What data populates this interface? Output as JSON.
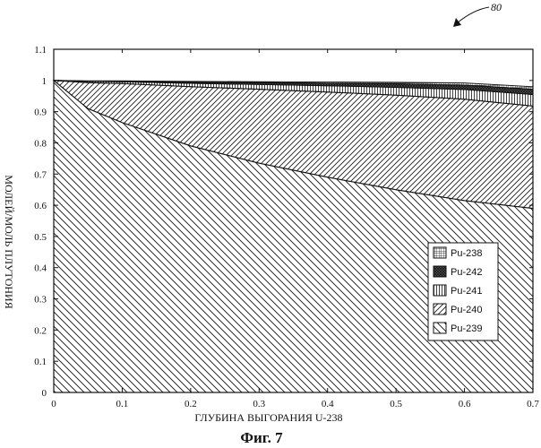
{
  "reference_number": "80",
  "figure_caption": "Фиг. 7",
  "chart_data": {
    "type": "area",
    "stacked": true,
    "xlabel": "ГЛУБИНА ВЫГОРАНИЯ U-238",
    "ylabel": "МОЛЕЙ/МОЛЬ ПЛУТОНИЯ",
    "xlim": [
      0,
      0.7
    ],
    "ylim": [
      0,
      1.1
    ],
    "x_ticks": [
      "0",
      "0.1",
      "0.2",
      "0.3",
      "0.4",
      "0.5",
      "0.6",
      "0.7"
    ],
    "y_ticks": [
      "0",
      "0.1",
      "0.2",
      "0.3",
      "0.4",
      "0.5",
      "0.6",
      "0.7",
      "0.8",
      "0.9",
      "1",
      "1.1"
    ],
    "grid": false,
    "legend_position": "lower-right",
    "x": [
      0,
      0.05,
      0.1,
      0.2,
      0.3,
      0.4,
      0.5,
      0.6,
      0.7
    ],
    "series": [
      {
        "name": "Pu-239",
        "pattern": "diag-down",
        "values": [
          1.0,
          0.91,
          0.865,
          0.79,
          0.735,
          0.69,
          0.65,
          0.615,
          0.59
        ]
      },
      {
        "name": "Pu-240",
        "pattern": "diag-up",
        "values": [
          0.0,
          0.083,
          0.125,
          0.19,
          0.237,
          0.273,
          0.303,
          0.325,
          0.328
        ]
      },
      {
        "name": "Pu-241",
        "pattern": "vertical",
        "values": [
          0.0,
          0.004,
          0.006,
          0.011,
          0.015,
          0.02,
          0.025,
          0.031,
          0.037
        ]
      },
      {
        "name": "Pu-242",
        "pattern": "crosshatch",
        "values": [
          0.0,
          0.001,
          0.002,
          0.004,
          0.006,
          0.008,
          0.011,
          0.014,
          0.017
        ]
      },
      {
        "name": "Pu-238",
        "pattern": "grid",
        "values": [
          0.0,
          0.001,
          0.001,
          0.002,
          0.003,
          0.004,
          0.005,
          0.007,
          0.008
        ]
      }
    ],
    "legend_order": [
      "Pu-238",
      "Pu-242",
      "Pu-241",
      "Pu-240",
      "Pu-239"
    ]
  }
}
